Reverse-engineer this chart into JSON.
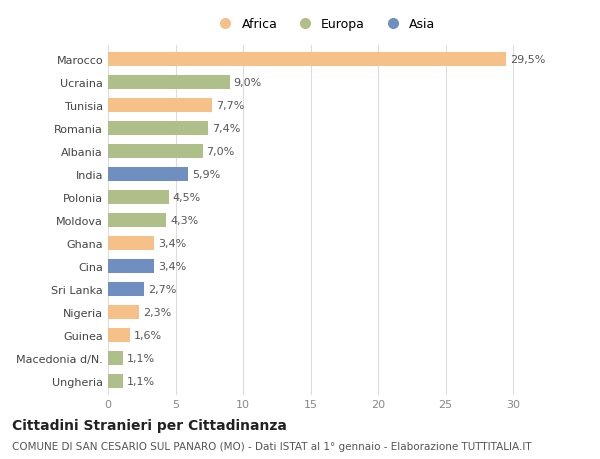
{
  "categories": [
    "Marocco",
    "Ucraina",
    "Tunisia",
    "Romania",
    "Albania",
    "India",
    "Polonia",
    "Moldova",
    "Ghana",
    "Cina",
    "Sri Lanka",
    "Nigeria",
    "Guinea",
    "Macedonia d/N.",
    "Ungheria"
  ],
  "values": [
    29.5,
    9.0,
    7.7,
    7.4,
    7.0,
    5.9,
    4.5,
    4.3,
    3.4,
    3.4,
    2.7,
    2.3,
    1.6,
    1.1,
    1.1
  ],
  "labels": [
    "29,5%",
    "9,0%",
    "7,7%",
    "7,4%",
    "7,0%",
    "5,9%",
    "4,5%",
    "4,3%",
    "3,4%",
    "3,4%",
    "2,7%",
    "2,3%",
    "1,6%",
    "1,1%",
    "1,1%"
  ],
  "continents": [
    "Africa",
    "Europa",
    "Africa",
    "Europa",
    "Europa",
    "Asia",
    "Europa",
    "Europa",
    "Africa",
    "Asia",
    "Asia",
    "Africa",
    "Africa",
    "Europa",
    "Europa"
  ],
  "colors": {
    "Africa": "#F5C189",
    "Europa": "#AEBF8A",
    "Asia": "#6E8FBF"
  },
  "title": "Cittadini Stranieri per Cittadinanza",
  "subtitle": "COMUNE DI SAN CESARIO SUL PANARO (MO) - Dati ISTAT al 1° gennaio - Elaborazione TUTTITALIA.IT",
  "xlim": [
    0,
    32
  ],
  "xticks": [
    0,
    5,
    10,
    15,
    20,
    25,
    30
  ],
  "background_color": "#ffffff",
  "grid_color": "#dddddd",
  "bar_height": 0.62,
  "title_fontsize": 10,
  "subtitle_fontsize": 7.5,
  "tick_fontsize": 8,
  "label_fontsize": 8
}
